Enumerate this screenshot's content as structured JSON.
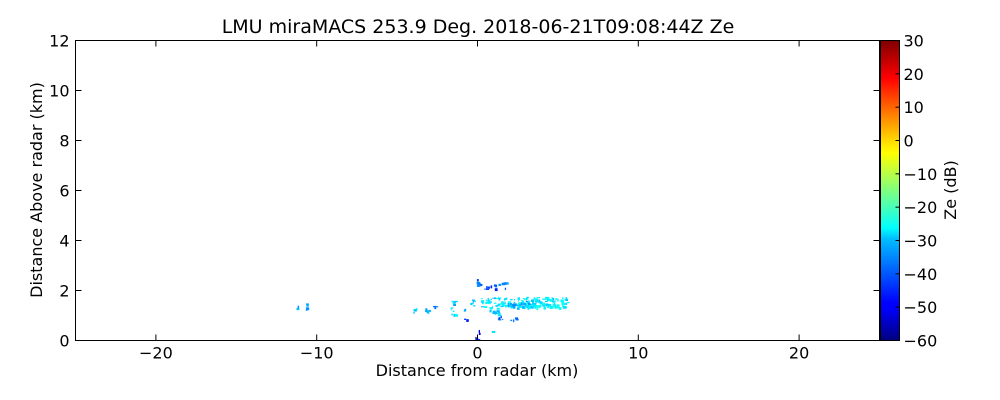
{
  "chart_data": {
    "type": "heatmap",
    "title": "LMU miraMACS 253.9 Deg. 2018-06-21T09:08:44Z  Ze",
    "xlabel": "Distance from radar (km)",
    "ylabel": "Distance Above radar  (km)",
    "xlim": [
      -25,
      25
    ],
    "ylim": [
      0,
      12
    ],
    "x_ticks": [
      -20,
      -10,
      0,
      10,
      20
    ],
    "x_tick_labels": [
      "−20",
      "−10",
      "0",
      "10",
      "20"
    ],
    "y_ticks": [
      0,
      2,
      4,
      6,
      8,
      10,
      12
    ],
    "y_tick_labels": [
      "0",
      "2",
      "4",
      "6",
      "8",
      "10",
      "12"
    ],
    "grid": false,
    "colorbar": {
      "label": "Ze (dB)",
      "colormap": "jet",
      "range": [
        -60,
        30
      ],
      "ticks": [
        -60,
        -50,
        -40,
        -30,
        -20,
        -10,
        0,
        10,
        20,
        30
      ],
      "tick_labels": [
        "−60",
        "−50",
        "−40",
        "−30",
        "−20",
        "−10",
        "0",
        "10",
        "20",
        "30"
      ]
    },
    "echoes": [
      {
        "x": [
          -11.3,
          -11.2
        ],
        "y": [
          1.25,
          1.45
        ],
        "ze": -32
      },
      {
        "x": [
          -10.8,
          -10.6
        ],
        "y": [
          1.2,
          1.5
        ],
        "ze": -37
      },
      {
        "x": [
          -4.1,
          -3.8
        ],
        "y": [
          1.1,
          1.3
        ],
        "ze": -30
      },
      {
        "x": [
          -3.4,
          -3.0
        ],
        "y": [
          1.15,
          1.35
        ],
        "ze": -32
      },
      {
        "x": [
          -2.8,
          -2.6
        ],
        "y": [
          1.2,
          1.4
        ],
        "ze": -38
      },
      {
        "x": [
          -1.7,
          -1.4
        ],
        "y": [
          1.0,
          1.6
        ],
        "ze": -30
      },
      {
        "x": [
          -1.0,
          -0.8
        ],
        "y": [
          1.2,
          1.35
        ],
        "ze": -33
      },
      {
        "x": [
          -0.9,
          -0.7
        ],
        "y": [
          0.85,
          0.95
        ],
        "ze": -45
      },
      {
        "x": [
          -0.5,
          -0.2
        ],
        "y": [
          1.4,
          1.7
        ],
        "ze": -30
      },
      {
        "x": [
          0.2,
          5.5
        ],
        "y": [
          1.3,
          1.75
        ],
        "ze": -28
      },
      {
        "x": [
          1.8,
          3.6
        ],
        "y": [
          1.35,
          1.6
        ],
        "ze": -32
      },
      {
        "x": [
          0.6,
          1.3
        ],
        "y": [
          1.0,
          1.25
        ],
        "ze": -30
      },
      {
        "x": [
          1.2,
          1.6
        ],
        "y": [
          0.8,
          1.0
        ],
        "ze": -42
      },
      {
        "x": [
          2.0,
          2.4
        ],
        "y": [
          0.8,
          0.95
        ],
        "ze": -40
      },
      {
        "x": [
          -0.1,
          0.2
        ],
        "y": [
          2.2,
          2.5
        ],
        "ze": -40
      },
      {
        "x": [
          0.4,
          1.1
        ],
        "y": [
          2.05,
          2.25
        ],
        "ze": -42
      },
      {
        "x": [
          1.3,
          1.8
        ],
        "y": [
          2.1,
          2.35
        ],
        "ze": -38
      },
      {
        "x": [
          -0.3,
          0.1
        ],
        "y": [
          0.05,
          0.15
        ],
        "ze": -47
      },
      {
        "x": [
          -0.05,
          0.1
        ],
        "y": [
          0.3,
          0.45
        ],
        "ze": -52
      },
      {
        "x": [
          0.8,
          0.9
        ],
        "y": [
          0.3,
          0.4
        ],
        "ze": -30
      },
      {
        "x": [
          5.4,
          5.6
        ],
        "y": [
          1.4,
          1.55
        ],
        "ze": -27
      }
    ]
  }
}
